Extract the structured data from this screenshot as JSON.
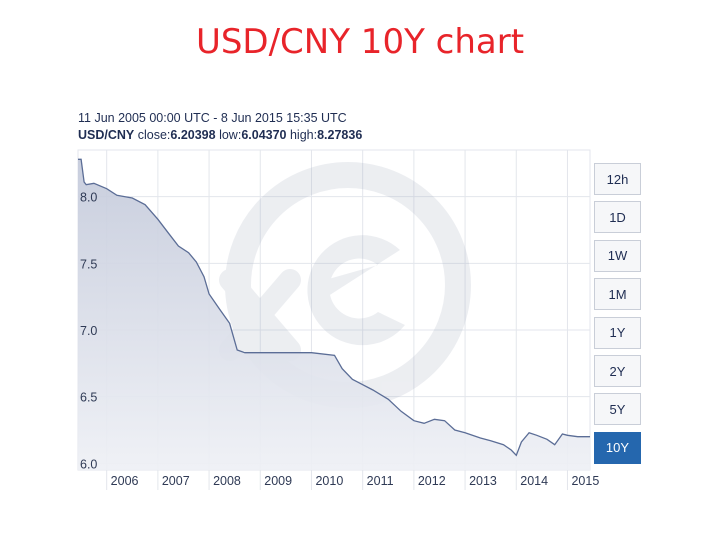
{
  "slide": {
    "title": "USD/CNY 10Y chart"
  },
  "info": {
    "range_text": "11 Jun 2005 00:00 UTC - 8 Jun 2015 15:35 UTC",
    "pair": "USD/CNY",
    "close_label": "close:",
    "close_value": "6.20398",
    "low_label": "low:",
    "low_value": "6.04370",
    "high_label": "high:",
    "high_value": "8.27836"
  },
  "range_buttons": [
    {
      "label": "12h",
      "active": false
    },
    {
      "label": "1D",
      "active": false
    },
    {
      "label": "1W",
      "active": false
    },
    {
      "label": "1M",
      "active": false
    },
    {
      "label": "1Y",
      "active": false
    },
    {
      "label": "2Y",
      "active": false
    },
    {
      "label": "5Y",
      "active": false
    },
    {
      "label": "10Y",
      "active": true
    }
  ],
  "colors": {
    "title": "#e8242a",
    "line": "#5b6d96",
    "fill_top": "#c4cadb",
    "fill_bottom": "#eef0f5",
    "grid": "#e3e6ec",
    "active_button": "#2567ae"
  },
  "chart_data": {
    "type": "area",
    "title": "",
    "xlabel": "",
    "ylabel": "",
    "xlim": [
      2005.44,
      2015.44
    ],
    "ylim": [
      5.95,
      8.35
    ],
    "y_ticks": [
      {
        "value": 8.0,
        "label": "8.0"
      },
      {
        "value": 7.5,
        "label": "7.5"
      },
      {
        "value": 7.0,
        "label": "7.0"
      },
      {
        "value": 6.5,
        "label": "6.5"
      },
      {
        "value": 6.0,
        "label": "6.0"
      }
    ],
    "x_ticks": [
      {
        "value": 2006,
        "label": "2006"
      },
      {
        "value": 2007,
        "label": "2007"
      },
      {
        "value": 2008,
        "label": "2008"
      },
      {
        "value": 2009,
        "label": "2009"
      },
      {
        "value": 2010,
        "label": "2010"
      },
      {
        "value": 2011,
        "label": "2011"
      },
      {
        "value": 2012,
        "label": "2012"
      },
      {
        "value": 2013,
        "label": "2013"
      },
      {
        "value": 2014,
        "label": "2014"
      },
      {
        "value": 2015,
        "label": "2015"
      }
    ],
    "grid": true,
    "series": [
      {
        "x": [
          2005.44,
          2005.5,
          2005.56,
          2005.6,
          2005.75,
          2006.0,
          2006.2,
          2006.5,
          2006.75,
          2007.0,
          2007.2,
          2007.4,
          2007.6,
          2007.75,
          2007.9,
          2008.0,
          2008.2,
          2008.4,
          2008.55,
          2008.7,
          2009.0,
          2009.5,
          2010.0,
          2010.45,
          2010.6,
          2010.8,
          2011.0,
          2011.2,
          2011.5,
          2011.75,
          2012.0,
          2012.2,
          2012.4,
          2012.6,
          2012.8,
          2013.0,
          2013.3,
          2013.5,
          2013.75,
          2013.9,
          2014.0,
          2014.1,
          2014.25,
          2014.4,
          2014.6,
          2014.75,
          2014.9,
          2015.0,
          2015.2,
          2015.44
        ],
        "y": [
          8.28,
          8.28,
          8.11,
          8.09,
          8.1,
          8.06,
          8.01,
          7.99,
          7.94,
          7.83,
          7.73,
          7.63,
          7.58,
          7.51,
          7.4,
          7.27,
          7.16,
          7.05,
          6.85,
          6.83,
          6.83,
          6.83,
          6.83,
          6.81,
          6.71,
          6.63,
          6.59,
          6.55,
          6.48,
          6.39,
          6.32,
          6.3,
          6.33,
          6.32,
          6.25,
          6.23,
          6.19,
          6.17,
          6.14,
          6.1,
          6.06,
          6.16,
          6.23,
          6.21,
          6.18,
          6.14,
          6.22,
          6.21,
          6.2,
          6.2
        ]
      }
    ]
  }
}
